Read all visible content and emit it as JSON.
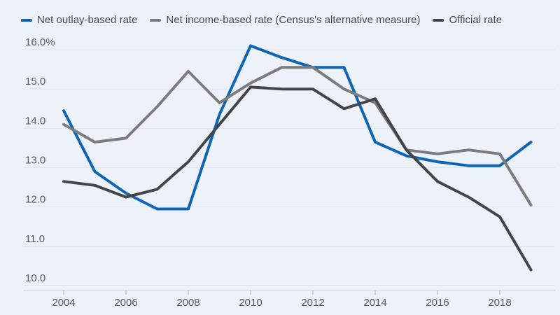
{
  "figure": {
    "background": "#edf2fa",
    "title": ""
  },
  "legend": {
    "position": "top-left"
  },
  "chart_data": {
    "type": "line",
    "x": [
      2004,
      2005,
      2006,
      2007,
      2008,
      2009,
      2010,
      2011,
      2012,
      2013,
      2014,
      2015,
      2016,
      2017,
      2018,
      2019
    ],
    "series": [
      {
        "id": "net-outlay-based-rate",
        "name": "Net outlay-based rate",
        "color": "#0e65b5",
        "values": [
          14.45,
          12.9,
          12.35,
          11.95,
          11.95,
          14.35,
          16.1,
          15.8,
          15.55,
          15.55,
          13.65,
          13.3,
          13.15,
          13.05,
          13.05,
          13.65
        ]
      },
      {
        "id": "net-income-based-rate",
        "name": "Net income-based rate (Census's alternative measure)",
        "color": "#7c7c7c",
        "values": [
          14.1,
          13.65,
          13.75,
          14.55,
          15.45,
          14.65,
          15.15,
          15.55,
          15.55,
          15.0,
          14.65,
          13.45,
          13.35,
          13.45,
          13.35,
          12.05
        ]
      },
      {
        "id": "official-rate",
        "name": "Official rate",
        "color": "#434649",
        "values": [
          12.65,
          12.55,
          12.25,
          12.45,
          13.15,
          14.1,
          15.05,
          15.0,
          15.0,
          14.5,
          14.75,
          13.45,
          12.65,
          12.25,
          11.75,
          10.4
        ]
      }
    ],
    "xlabel": "",
    "ylabel": "",
    "ylim": [
      10.0,
      16.0
    ],
    "yticks": [
      {
        "value": 10,
        "label": "10.0"
      },
      {
        "value": 11,
        "label": "11.0"
      },
      {
        "value": 12,
        "label": "12.0"
      },
      {
        "value": 13,
        "label": "13.0"
      },
      {
        "value": 14,
        "label": "14.0"
      },
      {
        "value": 15,
        "label": "15.0"
      },
      {
        "value": 16,
        "label": "16.0%"
      }
    ],
    "xticks": [
      2004,
      2006,
      2008,
      2010,
      2012,
      2014,
      2016,
      2018
    ],
    "grid": "horizontal",
    "legend_position": "top-left"
  },
  "style": {
    "gridline_color": "#dde4ef",
    "axis_line_color": "#c7d0de",
    "tick_mark_color": "#a9b2c0",
    "tick_label_color": "#525a66",
    "legend_text_color": "#45494e",
    "line_width": 4
  }
}
